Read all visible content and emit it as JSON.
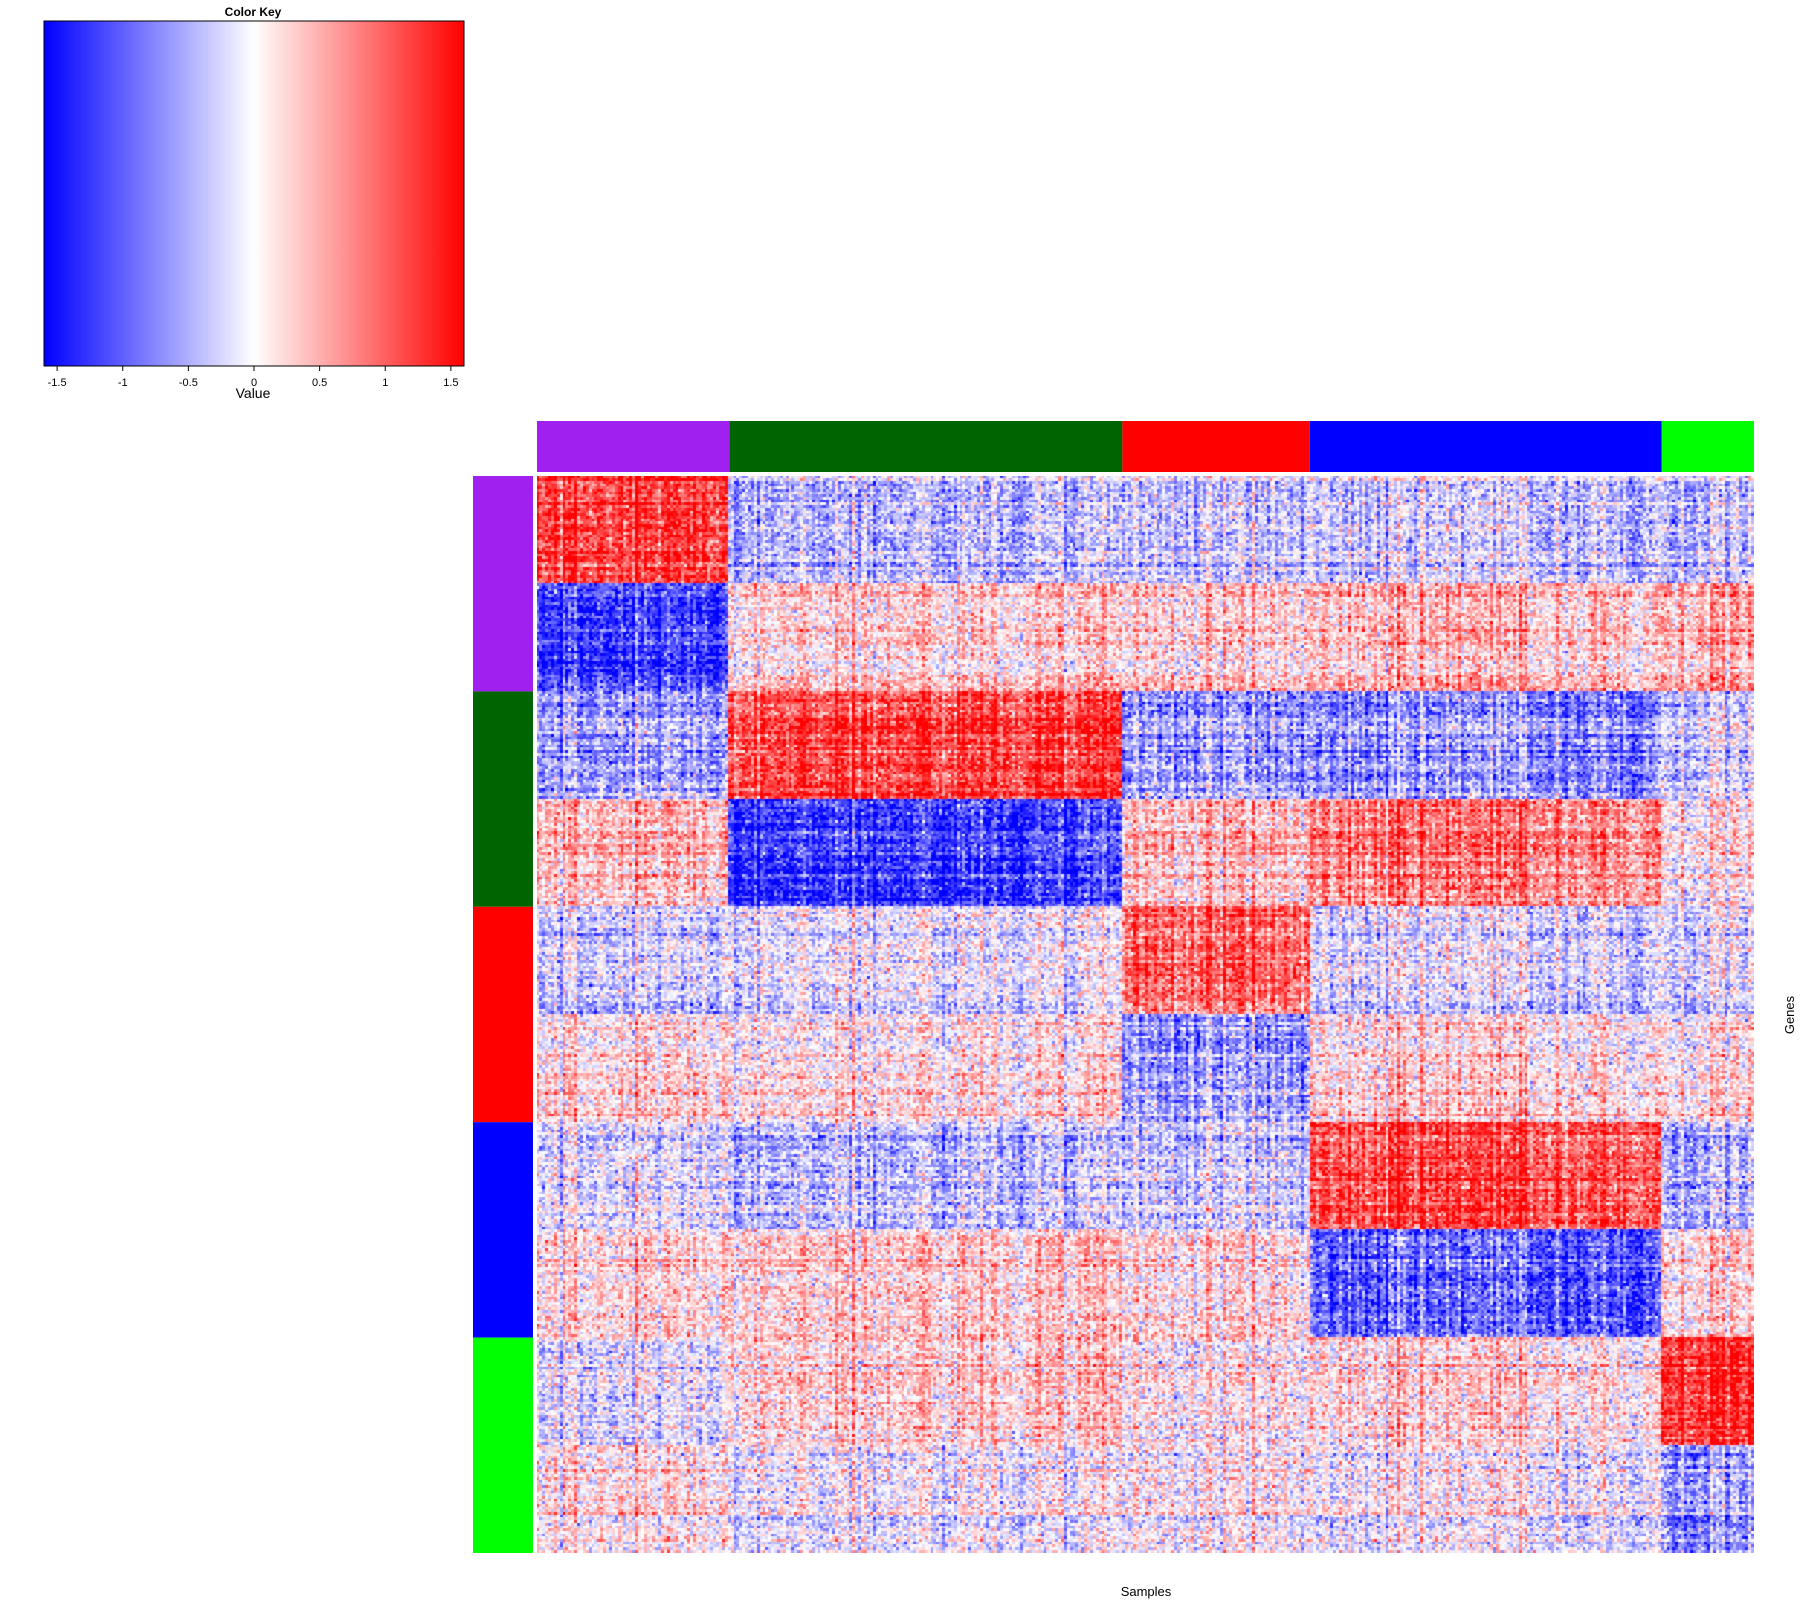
{
  "chart_data": {
    "type": "heatmap",
    "xlabel": "Samples",
    "ylabel": "Genes",
    "color_key": {
      "title": "Color Key",
      "xlabel": "Value",
      "range": [
        -1.6,
        1.6
      ],
      "ticks": [
        "-1.5",
        "-1",
        "-0.5",
        "0",
        "0.5",
        "1",
        "1.5"
      ],
      "tick_values": [
        -1.5,
        -1,
        -0.5,
        0,
        0.5,
        1,
        1.5
      ],
      "low_color": "#0000ff",
      "mid_color": "#ffffff",
      "high_color": "#ff0000"
    },
    "sample_groups": [
      {
        "name": "purple",
        "color": "#a020f0",
        "fraction": 0.158
      },
      {
        "name": "darkgreen",
        "color": "#006400",
        "fraction": 0.323
      },
      {
        "name": "red",
        "color": "#ff0000",
        "fraction": 0.154
      },
      {
        "name": "blue",
        "color": "#0000ff",
        "fraction": 0.289
      },
      {
        "name": "green",
        "color": "#00ff00",
        "fraction": 0.076
      }
    ],
    "gene_groups": [
      {
        "name": "purple",
        "color": "#a020f0"
      },
      {
        "name": "darkgreen",
        "color": "#006400"
      },
      {
        "name": "red",
        "color": "#ff0000"
      },
      {
        "name": "blue",
        "color": "#0000ff"
      },
      {
        "name": "green",
        "color": "#00ff00"
      }
    ],
    "block_pattern": {
      "description": "For each gene group, the upper half is up-regulated (red) in the matching sample group and the lower half is down-regulated (blue); mean values per gene-half (rows) by sample group (columns)",
      "rows": [
        {
          "gene_group": "purple",
          "half": "up",
          "means": [
            1.2,
            -0.4,
            -0.3,
            -0.3,
            -0.4
          ]
        },
        {
          "gene_group": "purple",
          "half": "down",
          "means": [
            -1.2,
            0.3,
            0.3,
            0.4,
            0.5
          ]
        },
        {
          "gene_group": "darkgreen",
          "half": "up",
          "means": [
            -0.6,
            1.2,
            -0.6,
            -0.7,
            -0.3
          ]
        },
        {
          "gene_group": "darkgreen",
          "half": "down",
          "means": [
            0.4,
            -1.2,
            0.4,
            0.8,
            0.1
          ]
        },
        {
          "gene_group": "red",
          "half": "up",
          "means": [
            -0.3,
            -0.1,
            1.0,
            -0.2,
            -0.2
          ]
        },
        {
          "gene_group": "red",
          "half": "down",
          "means": [
            0.2,
            0.15,
            -0.6,
            0.2,
            0.1
          ]
        },
        {
          "gene_group": "blue",
          "half": "up",
          "means": [
            -0.2,
            -0.4,
            -0.3,
            1.1,
            -0.5
          ]
        },
        {
          "gene_group": "blue",
          "half": "down",
          "means": [
            0.3,
            0.4,
            0.3,
            -0.9,
            0.3
          ]
        },
        {
          "gene_group": "green",
          "half": "up",
          "means": [
            -0.2,
            0.3,
            0.1,
            0.2,
            1.3
          ]
        },
        {
          "gene_group": "green",
          "half": "down",
          "means": [
            0.2,
            0.0,
            0.1,
            0.0,
            -0.6
          ]
        }
      ]
    }
  }
}
